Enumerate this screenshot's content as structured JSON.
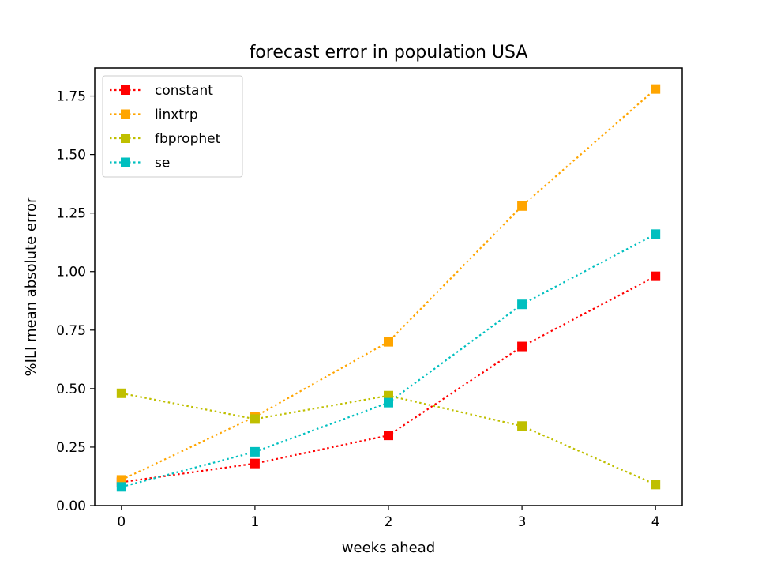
{
  "chart_data": {
    "type": "line",
    "title": "forecast error in population USA",
    "xlabel": "weeks ahead",
    "ylabel": "%ILI mean absolute error",
    "x": [
      0,
      1,
      2,
      3,
      4
    ],
    "xlim": [
      -0.2,
      4.2
    ],
    "ylim": [
      0,
      1.87
    ],
    "xticks": [
      "0",
      "1",
      "2",
      "3",
      "4"
    ],
    "yticks": [
      "0.00",
      "0.25",
      "0.50",
      "0.75",
      "1.00",
      "1.25",
      "1.50",
      "1.75"
    ],
    "grid": false,
    "legend_position": "top-left",
    "line_style": "dotted",
    "marker": "square",
    "series": [
      {
        "name": "constant",
        "color": "#ff0000",
        "values": [
          0.1,
          0.18,
          0.3,
          0.68,
          0.98
        ]
      },
      {
        "name": "linxtrp",
        "color": "#ffa500",
        "values": [
          0.11,
          0.38,
          0.7,
          1.28,
          1.78
        ]
      },
      {
        "name": "fbprophet",
        "color": "#bfbf00",
        "values": [
          0.48,
          0.37,
          0.47,
          0.34,
          0.09
        ]
      },
      {
        "name": "se",
        "color": "#00bfbf",
        "values": [
          0.08,
          0.23,
          0.44,
          0.86,
          1.16
        ]
      }
    ]
  }
}
